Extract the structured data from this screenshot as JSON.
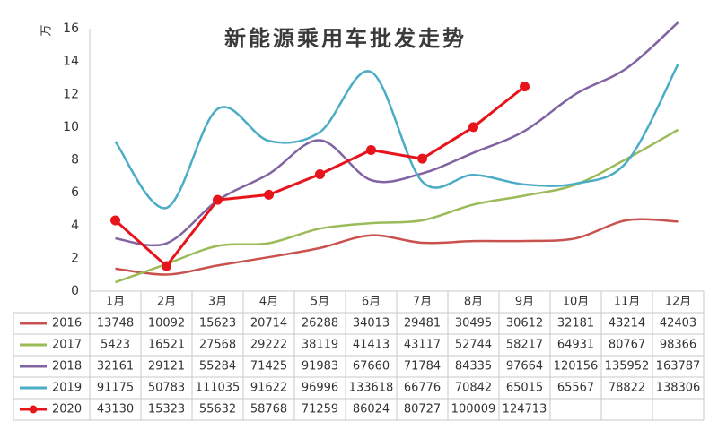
{
  "chart_data": {
    "type": "line",
    "title": "新能源乘用车批发走势",
    "y_label": "万",
    "categories": [
      "1月",
      "2月",
      "3月",
      "4月",
      "5月",
      "6月",
      "7月",
      "8月",
      "9月",
      "10月",
      "11月",
      "12月"
    ],
    "ylim": [
      0,
      16
    ],
    "yticks": [
      0,
      2,
      4,
      6,
      8,
      10,
      12,
      14,
      16
    ],
    "grid": false,
    "series": [
      {
        "name": "2016",
        "color": "#c9524f",
        "smooth": true,
        "marker": false,
        "values": [
          1.3748,
          1.0092,
          1.5623,
          2.0714,
          2.6288,
          3.4013,
          2.9481,
          3.0495,
          3.0612,
          3.2181,
          4.3214,
          4.2403
        ],
        "value_labels": [
          "13748",
          "10092",
          "15623",
          "20714",
          "26288",
          "34013",
          "29481",
          "30495",
          "30612",
          "32181",
          "43214",
          "42403"
        ]
      },
      {
        "name": "2017",
        "color": "#9bbb59",
        "smooth": true,
        "marker": false,
        "values": [
          0.5423,
          1.6521,
          2.7568,
          2.9222,
          3.8119,
          4.1413,
          4.3117,
          5.2744,
          5.8217,
          6.4931,
          8.0767,
          9.8366
        ],
        "value_labels": [
          "5423",
          "16521",
          "27568",
          "29222",
          "38119",
          "41413",
          "43117",
          "52744",
          "58217",
          "64931",
          "80767",
          "98366"
        ]
      },
      {
        "name": "2018",
        "color": "#8064a2",
        "smooth": true,
        "marker": false,
        "values": [
          3.2161,
          2.9121,
          5.5284,
          7.1425,
          9.1983,
          6.766,
          7.1784,
          8.4335,
          9.7664,
          12.0156,
          13.5952,
          16.3787
        ],
        "value_labels": [
          "32161",
          "29121",
          "55284",
          "71425",
          "91983",
          "67660",
          "71784",
          "84335",
          "97664",
          "120156",
          "135952",
          "163787"
        ]
      },
      {
        "name": "2019",
        "color": "#4bacc6",
        "smooth": true,
        "marker": false,
        "values": [
          9.1175,
          5.0783,
          11.1035,
          9.1622,
          9.6996,
          13.3618,
          6.6776,
          7.0842,
          6.5015,
          6.5567,
          7.8822,
          13.8306
        ],
        "value_labels": [
          "91175",
          "50783",
          "111035",
          "91622",
          "96996",
          "133618",
          "66776",
          "70842",
          "65015",
          "65567",
          "78822",
          "138306"
        ]
      },
      {
        "name": "2020",
        "color": "#e8141b",
        "smooth": false,
        "marker": true,
        "values": [
          4.313,
          1.5323,
          5.5632,
          5.8768,
          7.1259,
          8.6024,
          8.0727,
          10.0009,
          12.4713,
          null,
          null,
          null
        ],
        "value_labels": [
          "43130",
          "15323",
          "55632",
          "58768",
          "71259",
          "86024",
          "80727",
          "100009",
          "124713",
          null,
          null,
          null
        ]
      }
    ]
  }
}
